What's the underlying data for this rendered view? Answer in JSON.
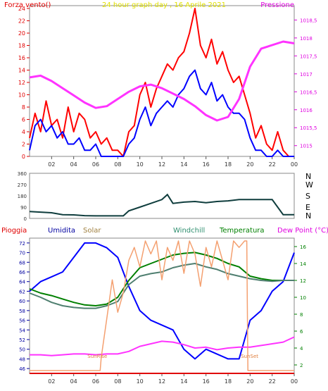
{
  "chart_data": [
    {
      "type": "line",
      "title": "24 hour graph day , 16 Aprile 2021",
      "left_label": "Forza vento()",
      "right_label": "Pressione",
      "title_color": "#e0e000",
      "left_color": "#e00000",
      "right_color": "#e000e0",
      "x_ticks": [
        "02",
        "04",
        "06",
        "08",
        "10",
        "12",
        "14",
        "16",
        "18",
        "20",
        "22",
        "00"
      ],
      "xlim": [
        0,
        24
      ],
      "y_left_ticks": [
        "0",
        "2",
        "4",
        "6",
        "8",
        "10",
        "12",
        "14",
        "16",
        "18",
        "20",
        "22",
        "24"
      ],
      "ylim_left": [
        0,
        24
      ],
      "y_right_ticks": [
        "1015",
        "1015,5",
        "1016",
        "1016,5",
        "1017",
        "1017,5",
        "1018",
        "1018,5"
      ],
      "ylim_right": [
        1014.7,
        1018.9
      ],
      "series": [
        {
          "name": "",
          "color": "#ff0000",
          "axis": "left",
          "x": [
            0,
            0.5,
            1,
            1.5,
            2,
            2.5,
            3,
            3.5,
            4,
            4.5,
            5,
            5.5,
            6,
            6.5,
            7,
            7.5,
            8,
            8.5,
            9,
            9.5,
            10,
            10.5,
            11,
            11.5,
            12,
            12.5,
            13,
            13.5,
            14,
            14.5,
            15,
            15.5,
            16,
            16.5,
            17,
            17.5,
            18,
            18.5,
            19,
            19.5,
            20,
            20.5,
            21,
            21.5,
            22,
            22.5,
            23,
            23.5,
            24
          ],
          "y": [
            3,
            7,
            4,
            9,
            5,
            6,
            3,
            8,
            4,
            7,
            6,
            3,
            4,
            2,
            3,
            1,
            1,
            0,
            4,
            5,
            10,
            12,
            8,
            11,
            13,
            15,
            14,
            16,
            17,
            20,
            24,
            18,
            16,
            19,
            15,
            17,
            14,
            12,
            13,
            10,
            7,
            3,
            5,
            2,
            1,
            4,
            1,
            0,
            0
          ]
        },
        {
          "name": "",
          "color": "#0000ff",
          "axis": "left",
          "x": [
            0,
            0.5,
            1,
            1.5,
            2,
            2.5,
            3,
            3.5,
            4,
            4.5,
            5,
            5.5,
            6,
            6.5,
            7,
            7.5,
            8,
            8.5,
            9,
            9.5,
            10,
            10.5,
            11,
            11.5,
            12,
            12.5,
            13,
            13.5,
            14,
            14.5,
            15,
            15.5,
            16,
            16.5,
            17,
            17.5,
            18,
            18.5,
            19,
            19.5,
            20,
            20.5,
            21,
            21.5,
            22,
            22.5,
            23,
            23.5,
            24
          ],
          "y": [
            1,
            5,
            6,
            4,
            5,
            3,
            4,
            2,
            2,
            3,
            1,
            1,
            2,
            0,
            0,
            0,
            0,
            0,
            2,
            3,
            6,
            8,
            5,
            7,
            8,
            9,
            8,
            10,
            11,
            13,
            14,
            11,
            10,
            12,
            9,
            10,
            8,
            7,
            7,
            6,
            3,
            1,
            1,
            0,
            0,
            1,
            0,
            0,
            0
          ]
        },
        {
          "name": "",
          "color": "#ff33ff",
          "axis": "right",
          "x": [
            0,
            1,
            2,
            3,
            4,
            5,
            6,
            7,
            8,
            9,
            10,
            11,
            12,
            13,
            14,
            15,
            16,
            17,
            18,
            19,
            20,
            21,
            22,
            23,
            24
          ],
          "y": [
            1016.9,
            1016.95,
            1016.8,
            1016.6,
            1016.4,
            1016.2,
            1016.05,
            1016.1,
            1016.3,
            1016.5,
            1016.65,
            1016.7,
            1016.6,
            1016.45,
            1016.3,
            1016.1,
            1015.85,
            1015.7,
            1015.8,
            1016.3,
            1017.2,
            1017.7,
            1017.8,
            1017.9,
            1017.85
          ]
        }
      ]
    },
    {
      "type": "line",
      "title": "",
      "y_ticks": [
        "0",
        "90",
        "180",
        "270",
        "360"
      ],
      "ylim": [
        0,
        360
      ],
      "compass": [
        "N",
        "W",
        "S",
        "E",
        "N"
      ],
      "xlim": [
        0,
        24
      ],
      "series": [
        {
          "name": "",
          "color": "#0f3d3d",
          "x": [
            0,
            1,
            2,
            3,
            4,
            5,
            6,
            7,
            8,
            8.5,
            9,
            10,
            11,
            12,
            12.5,
            13,
            14,
            15,
            16,
            17,
            18,
            19,
            20,
            21,
            22,
            23,
            24
          ],
          "y": [
            55,
            50,
            45,
            30,
            28,
            22,
            20,
            20,
            20,
            20,
            60,
            90,
            120,
            150,
            190,
            120,
            130,
            135,
            125,
            135,
            140,
            150,
            150,
            150,
            150,
            30,
            30
          ]
        }
      ]
    },
    {
      "type": "line",
      "title": "",
      "legend": [
        "Pioggia",
        "Umidita",
        "Solar",
        "Windchill",
        "Temperatura",
        "Dew Point (°C)"
      ],
      "legend_colors": [
        "#e00000",
        "#0000a0",
        "#a08040",
        "#2f8f6f",
        "#008000",
        "#e000e0"
      ],
      "x_ticks": [
        "02",
        "04",
        "06",
        "08",
        "10",
        "12",
        "14",
        "16",
        "18",
        "20",
        "22",
        "00"
      ],
      "xlim": [
        0,
        24
      ],
      "y_left_ticks": [
        "46",
        "48",
        "50",
        "52",
        "54",
        "56",
        "58",
        "60",
        "62",
        "64",
        "66",
        "68",
        "70",
        "72"
      ],
      "ylim_left": [
        45,
        73
      ],
      "y_right_ticks": [
        "2",
        "4",
        "6",
        "8",
        "10",
        "12",
        "14",
        "16"
      ],
      "ylim_right": [
        1,
        17
      ],
      "annotations": [
        "SunRise",
        "SunSet"
      ],
      "series": [
        {
          "name": "Umidita",
          "color": "#0000ff",
          "axis": "left",
          "x": [
            0,
            1,
            2,
            3,
            4,
            5,
            6,
            7,
            8,
            9,
            10,
            11,
            12,
            13,
            14,
            15,
            16,
            17,
            18,
            19,
            20,
            21,
            22,
            23,
            24
          ],
          "y": [
            62,
            64,
            65,
            66,
            69,
            72,
            72,
            71,
            69,
            63,
            58,
            56,
            55,
            54,
            50,
            48,
            50,
            49,
            48,
            48,
            56,
            58,
            62,
            64,
            70
          ]
        },
        {
          "name": "Temperatura",
          "color": "#008000",
          "axis": "right",
          "x": [
            0,
            1,
            2,
            3,
            4,
            5,
            6,
            7,
            8,
            9,
            10,
            11,
            12,
            13,
            14,
            15,
            16,
            17,
            18,
            19,
            20,
            21,
            22,
            23,
            24
          ],
          "y": [
            11,
            10.5,
            10.2,
            9.8,
            9.4,
            9.1,
            9,
            9.2,
            10,
            12,
            13.5,
            14,
            14.5,
            15,
            15.2,
            15.3,
            15,
            14.6,
            14,
            13.6,
            12.5,
            12.2,
            12,
            12,
            12
          ]
        },
        {
          "name": "Windchill",
          "color": "#4f7f70",
          "axis": "right",
          "x": [
            0,
            1,
            2,
            3,
            4,
            5,
            6,
            7,
            8,
            9,
            10,
            11,
            12,
            13,
            14,
            15,
            16,
            17,
            18,
            19,
            20,
            21,
            22,
            23,
            24
          ],
          "y": [
            10.5,
            10,
            9.4,
            9,
            8.8,
            8.7,
            8.7,
            9,
            9.5,
            11.5,
            12.5,
            12.8,
            13,
            13.5,
            13.8,
            14,
            13.6,
            13.3,
            12.8,
            12.5,
            12.2,
            12,
            11.9,
            12,
            12
          ]
        },
        {
          "name": "Dew Point (°C)",
          "color": "#ff33ff",
          "axis": "right",
          "x": [
            0,
            1,
            2,
            3,
            4,
            5,
            6,
            7,
            8,
            9,
            10,
            11,
            12,
            13,
            14,
            15,
            16,
            17,
            18,
            19,
            20,
            21,
            22,
            23,
            24
          ],
          "y": [
            3.2,
            3.2,
            3.1,
            3.2,
            3.3,
            3.3,
            3.2,
            3.3,
            3.3,
            3.6,
            4.2,
            4.5,
            4.8,
            4.7,
            4.4,
            4,
            4.1,
            3.8,
            4,
            4.1,
            4.1,
            4.3,
            4.5,
            4.7,
            5.3
          ]
        },
        {
          "name": "Solar",
          "color": "#f4a070",
          "axis": "solar",
          "x": [
            0,
            6.4,
            6.5,
            7,
            7.5,
            8,
            8.5,
            9,
            9.5,
            10,
            10.5,
            11,
            11.5,
            12,
            12.5,
            13,
            13.5,
            14,
            14.5,
            15,
            15.5,
            16,
            16.5,
            17,
            17.5,
            18,
            18.5,
            19,
            19.5,
            19.7,
            19.8,
            24
          ],
          "y": [
            0,
            0,
            10,
            40,
            70,
            45,
            60,
            85,
            95,
            80,
            100,
            90,
            100,
            70,
            95,
            85,
            100,
            75,
            100,
            90,
            65,
            95,
            80,
            100,
            85,
            70,
            100,
            95,
            100,
            100,
            0,
            0
          ]
        },
        {
          "name": "Pioggia",
          "color": "#e00000",
          "axis": "left",
          "x": [
            0,
            24
          ],
          "y": [
            45,
            45
          ]
        }
      ]
    }
  ]
}
